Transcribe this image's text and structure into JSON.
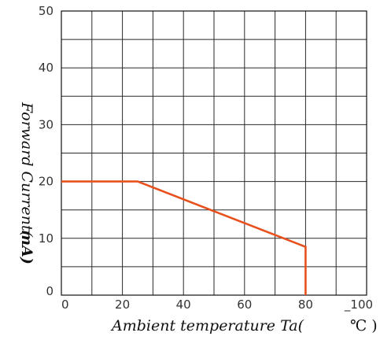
{
  "chart_data": {
    "type": "line",
    "title": "",
    "xlabel": "Ambient temperature Ta(",
    "xunit": "℃ )",
    "ylabel": "Forward Current(",
    "yunit": "mA)",
    "xlim": [
      0,
      100
    ],
    "ylim": [
      0,
      50
    ],
    "x_ticks": [
      0,
      20,
      40,
      60,
      80,
      100
    ],
    "x_tick_labels": [
      "0",
      "20",
      "40",
      "60",
      "80",
      "_100"
    ],
    "y_ticks": [
      0,
      10,
      20,
      30,
      40,
      50
    ],
    "y_tick_labels": [
      "0",
      "10",
      "20",
      "30",
      "40",
      "50"
    ],
    "grid": true,
    "x_grid_step": 10,
    "y_grid_step": 5,
    "series": [
      {
        "color": "#e8501e",
        "points": [
          {
            "x": 0,
            "y": 20
          },
          {
            "x": 25,
            "y": 20
          },
          {
            "x": 80,
            "y": 8.5
          },
          {
            "x": 80,
            "y": 0
          }
        ]
      }
    ]
  }
}
